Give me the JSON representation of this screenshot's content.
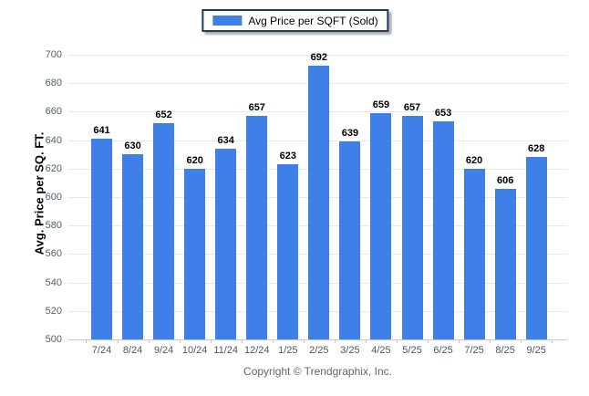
{
  "chart_data": {
    "type": "bar",
    "title": "",
    "legend": [
      "Avg Price per SQFT (Sold)"
    ],
    "legend_position": "top-center",
    "categories": [
      "7/24",
      "8/24",
      "9/24",
      "10/24",
      "11/24",
      "12/24",
      "1/25",
      "2/25",
      "3/25",
      "4/25",
      "5/25",
      "6/25",
      "7/25",
      "8/25",
      "9/25"
    ],
    "values": [
      641,
      630,
      652,
      620,
      634,
      657,
      623,
      692,
      639,
      659,
      657,
      653,
      620,
      606,
      628
    ],
    "xlabel": "",
    "ylabel": "Avg. Price per SQ. FT.",
    "ylim": [
      500,
      700
    ],
    "ytick_step": 20,
    "yticks": [
      500,
      520,
      540,
      560,
      580,
      600,
      620,
      640,
      660,
      680,
      700
    ],
    "grid": true,
    "bar_color": "#3f80e8",
    "legend_border_color": "#1f3864"
  },
  "footer": {
    "copyright": "Copyright © Trendgraphix, Inc."
  }
}
